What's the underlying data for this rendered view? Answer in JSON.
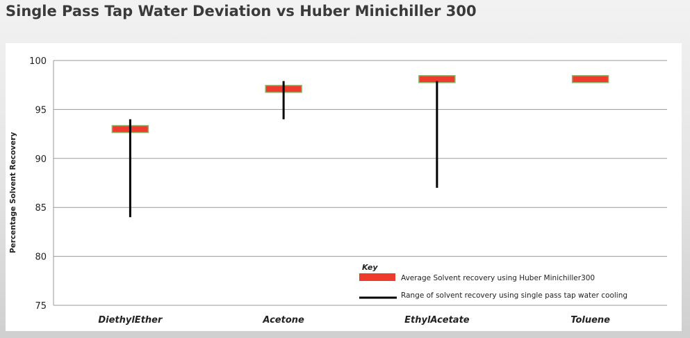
{
  "title": "Single Pass Tap Water Deviation vs Huber Minichiller 300",
  "chart_data": {
    "type": "range",
    "categories": [
      "DiethylEther",
      "Acetone",
      "EthylAcetate",
      "Toluene"
    ],
    "series": [
      {
        "name": "Average Solvent recovery using Huber Minichiller300",
        "values": [
          93,
          97.1,
          98.1,
          98.1
        ]
      },
      {
        "name": "Range of solvent recovery using single pass tap water cooling",
        "ranges": [
          [
            84,
            94
          ],
          [
            94,
            97.9
          ],
          [
            87,
            97.9
          ],
          null
        ]
      }
    ],
    "ylabel": "Percentage Solvent Recovery",
    "ylim": [
      75,
      100
    ],
    "yticks": [
      75,
      80,
      85,
      90,
      95,
      100
    ],
    "grid": true,
    "legend": {
      "title": "Key",
      "position": "bottom-right"
    },
    "colors": {
      "average_fill": "#ee3b2e",
      "average_border": "#8db36a",
      "range": "#000000",
      "grid": "#9a9a9a"
    }
  }
}
